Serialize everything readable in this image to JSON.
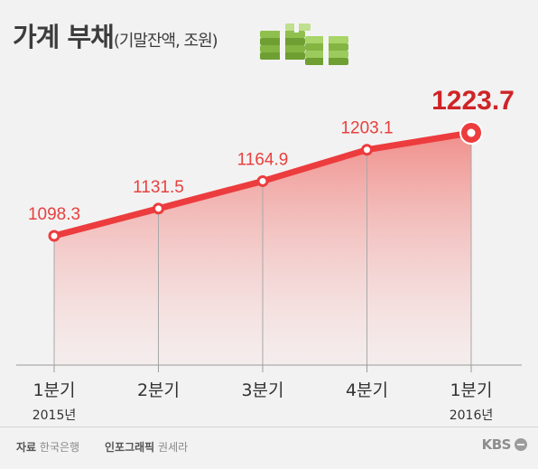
{
  "title": {
    "main": "가계 부채",
    "sub": "(기말잔액, 조원)"
  },
  "icons": {
    "title_icon": "money-stack-icon",
    "logo_icon": "kbs-logo-icon"
  },
  "colors": {
    "line": "#ec3c3e",
    "label": "#e8403f",
    "last_label": "#cf2427",
    "area_top": "#f08a86",
    "area_bottom": "#f7e4e3",
    "axis": "#a8a8a8",
    "text": "#333333",
    "money_green": "#7cb342",
    "money_dark": "#5a8a2a"
  },
  "chart_data": {
    "type": "area",
    "title": "가계 부채",
    "subtitle": "(기말잔액, 조원)",
    "categories": [
      "1분기",
      "2분기",
      "3분기",
      "4분기",
      "1분기"
    ],
    "year_labels": [
      "2015년",
      "",
      "",
      "",
      "2016년"
    ],
    "series": [
      {
        "values": [
          1098.3,
          1131.5,
          1164.9,
          1203.1,
          1223.7
        ]
      }
    ],
    "value_labels": [
      "1098.3",
      "1131.5",
      "1164.9",
      "1203.1",
      "1223.7"
    ],
    "highlight_last": true,
    "grid": false,
    "ylim": [
      1000,
      1240
    ]
  },
  "footer": {
    "source_label": "자료",
    "source_value": "한국은행",
    "graphic_label": "인포그래픽",
    "graphic_value": "권세라",
    "logo_text": "KBS"
  }
}
